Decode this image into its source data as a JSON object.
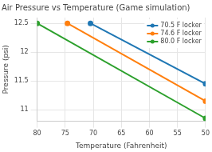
{
  "chart_data": {
    "type": "line",
    "title": "Air Pressure vs Temperature (Game simulation)",
    "x_label": "Temperature (Fahrenheit)",
    "y_label": "Pressure (psi)",
    "series": [
      {
        "name": "70.5 F locker",
        "color": "#1f77b4",
        "marker": "circle",
        "line_style": "solid",
        "x": [
          70.5,
          50
        ],
        "values": [
          12.5,
          11.45
        ]
      },
      {
        "name": "74.6 F locker",
        "color": "#ff7f0e",
        "marker": "circle",
        "line_style": "solid",
        "x": [
          74.6,
          50
        ],
        "values": [
          12.5,
          11.15
        ]
      },
      {
        "name": "80.0 F locker",
        "color": "#2ca02c",
        "marker": "circle",
        "line_style": "solid",
        "x": [
          80,
          50
        ],
        "values": [
          12.5,
          10.85
        ]
      }
    ],
    "xlim": [
      80,
      50
    ],
    "xticks": [
      80,
      75,
      70,
      65,
      60,
      55,
      50
    ],
    "ylim": [
      10.8,
      12.6
    ],
    "yticks": [
      11,
      11.5,
      12,
      12.5
    ],
    "grid": true,
    "legend": "top-right"
  }
}
